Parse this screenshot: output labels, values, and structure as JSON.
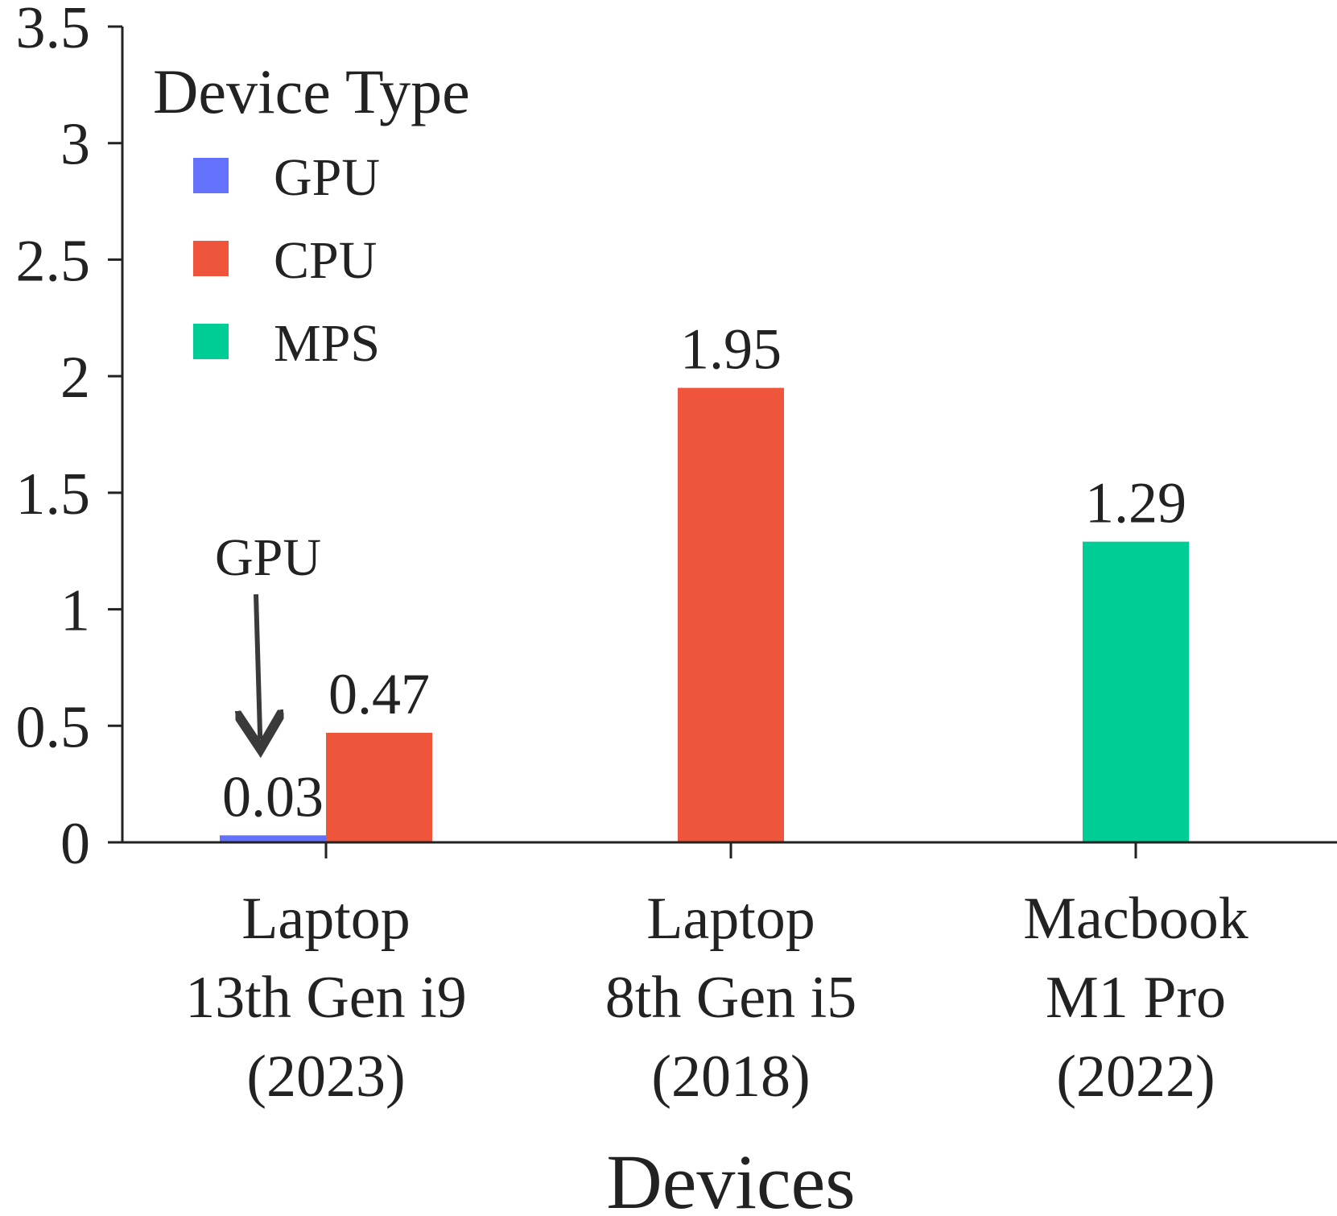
{
  "chart_data": {
    "type": "bar",
    "title": "",
    "xlabel": "Devices",
    "ylabel": "",
    "ylim": [
      0,
      3.5
    ],
    "yticks": [
      0,
      0.5,
      1,
      1.5,
      2,
      2.5,
      3,
      3.5
    ],
    "ytick_labels": [
      "0",
      "0.5",
      "1",
      "1.5",
      "2",
      "2.5",
      "3",
      "3.5"
    ],
    "categories": [
      {
        "lines": [
          "Laptop",
          "13th Gen i9",
          "(2023)"
        ]
      },
      {
        "lines": [
          "Laptop",
          "8th Gen i5",
          "(2018)"
        ]
      },
      {
        "lines": [
          "Macbook",
          "M1 Pro",
          "(2022)"
        ]
      }
    ],
    "series": [
      {
        "name": "GPU",
        "color": "#6471fb",
        "values": [
          0.03,
          null,
          null
        ],
        "labels": [
          "0.03",
          null,
          null
        ]
      },
      {
        "name": "CPU",
        "color": "#ef553b",
        "values": [
          0.47,
          1.95,
          null
        ],
        "labels": [
          "0.47",
          "1.95",
          null
        ]
      },
      {
        "name": "MPS",
        "color": "#00cc96",
        "values": [
          null,
          null,
          1.29
        ],
        "labels": [
          null,
          null,
          "1.29"
        ]
      }
    ],
    "legend": {
      "title": "Device Type",
      "placement": "top-left",
      "entries": [
        "GPU",
        "CPU",
        "MPS"
      ]
    },
    "annotations": [
      {
        "text": "GPU",
        "target_category": 0,
        "target_series": "GPU",
        "arrow": true
      }
    ],
    "grid": false,
    "colors": {
      "axis": "#222222",
      "text": "#222222",
      "arrow": "#3a3a3a"
    }
  }
}
